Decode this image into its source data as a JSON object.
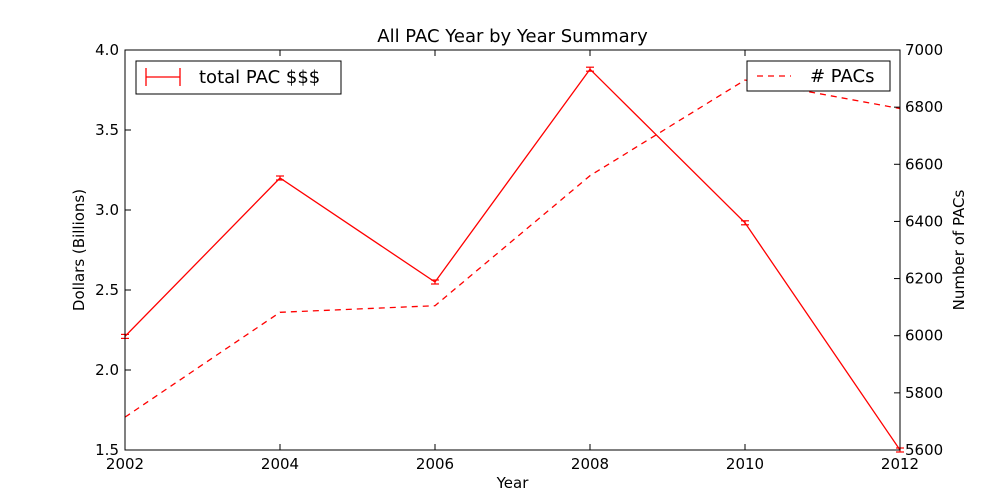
{
  "chart_data": {
    "type": "line",
    "title": "All PAC Year by Year Summary",
    "xlabel": "Year",
    "ylabel": "Dollars (Billions)",
    "y2label": "Number of PACs",
    "x": [
      2002,
      2004,
      2006,
      2008,
      2010,
      2012
    ],
    "xticks": [
      "2002",
      "2004",
      "2006",
      "2008",
      "2010",
      "2012"
    ],
    "xlim": [
      2002,
      2012
    ],
    "ylim": [
      1.5,
      4.0
    ],
    "yticks": [
      "1.5",
      "2.0",
      "2.5",
      "3.0",
      "3.5",
      "4.0"
    ],
    "y2lim": [
      5600,
      7000
    ],
    "y2ticks": [
      "5600",
      "5800",
      "6000",
      "6200",
      "6400",
      "6600",
      "6800",
      "7000"
    ],
    "grid": false,
    "series": [
      {
        "name": "total PAC $$$",
        "axis": "left",
        "style": "solid",
        "errorbars": true,
        "color": "#ff0000",
        "values": [
          2.21,
          3.2,
          2.55,
          3.88,
          2.92,
          1.5
        ],
        "legend_position": "top-left"
      },
      {
        "name": "# PACs",
        "axis": "right",
        "style": "dashed",
        "errorbars": false,
        "color": "#ff0000",
        "values": [
          5715,
          6082,
          6105,
          6560,
          6895,
          6795
        ],
        "legend_position": "top-right"
      }
    ]
  }
}
